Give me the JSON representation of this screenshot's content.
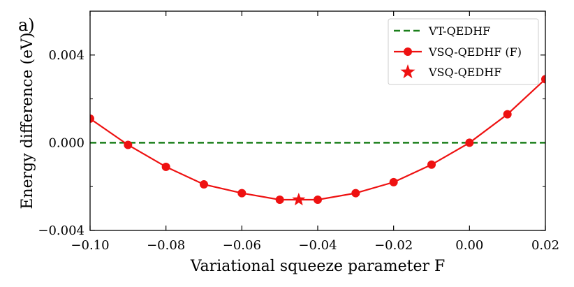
{
  "panel_label": "a)",
  "colors": {
    "vt_line": "#1a7f1a",
    "vsq_series": "#ee1111",
    "axes": "#000000"
  },
  "chart_data": {
    "type": "line",
    "xlabel": "Variational squeeze parameter F",
    "ylabel": "Energy difference (eV)",
    "xlim": [
      -0.1,
      0.02
    ],
    "ylim": [
      -0.004,
      0.006
    ],
    "x_ticks": [
      -0.1,
      -0.08,
      -0.06,
      -0.04,
      -0.02,
      0.0,
      0.02
    ],
    "x_tick_labels": [
      "−0.10",
      "−0.08",
      "−0.06",
      "−0.04",
      "−0.02",
      "0.00",
      "0.02"
    ],
    "y_ticks": [
      -0.004,
      0.0,
      0.004
    ],
    "y_tick_labels": [
      "−0.004",
      "0.000",
      "0.004"
    ],
    "legend_position": "top-right",
    "series": [
      {
        "name": "VT-QEDHF",
        "style": "dashed-line",
        "x": [
          -0.1,
          0.02
        ],
        "y": [
          0.0,
          0.0
        ]
      },
      {
        "name": "VSQ-QEDHF (F)",
        "style": "line-circle",
        "x": [
          -0.1,
          -0.09,
          -0.08,
          -0.07,
          -0.06,
          -0.05,
          -0.04,
          -0.03,
          -0.02,
          -0.01,
          0.0,
          0.01,
          0.02
        ],
        "y": [
          0.0011,
          -0.0001,
          -0.0011,
          -0.0019,
          -0.0023,
          -0.0026,
          -0.0026,
          -0.0023,
          -0.0018,
          -0.001,
          0.0,
          0.0013,
          0.0029
        ]
      },
      {
        "name": "VSQ-QEDHF",
        "style": "star",
        "x": [
          -0.045
        ],
        "y": [
          -0.0026
        ]
      }
    ]
  }
}
